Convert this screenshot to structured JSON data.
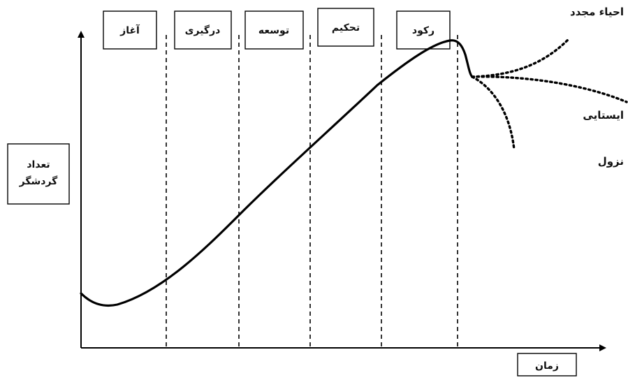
{
  "stages": [
    {
      "id": "exploration",
      "label": "آغاز"
    },
    {
      "id": "involvement",
      "label": "درگیری"
    },
    {
      "id": "development",
      "label": "توسعه"
    },
    {
      "id": "consolidation",
      "label": "تحکیم"
    },
    {
      "id": "stagnation",
      "label": "رکود"
    }
  ],
  "outcomes": {
    "rejuvenation": "احیاء مجدد",
    "stabilization": "ایستایی",
    "decline": "نزول"
  },
  "axes": {
    "y_label_line1": "تعداد",
    "y_label_line2": "گردشگر",
    "x_label": "زمان"
  }
}
